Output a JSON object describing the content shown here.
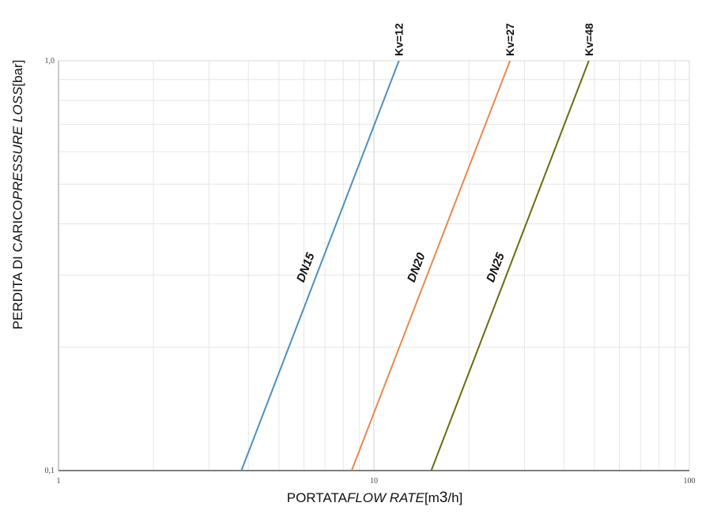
{
  "chart_data": {
    "type": "line",
    "xlabel_parts": [
      "PORTATA",
      "FLOW RATE",
      "[m",
      "3",
      "/h]"
    ],
    "ylabel_parts": [
      "PERDITA DI CARICO",
      "PRESSURE LOSS",
      "[bar]"
    ],
    "x_scale": "log",
    "y_scale": "log",
    "xlim": [
      1,
      100
    ],
    "ylim": [
      0.1,
      1.0
    ],
    "x_ticks": [
      1,
      10,
      100
    ],
    "x_tick_labels": [
      "1",
      "10",
      "100"
    ],
    "y_ticks": [
      0.1,
      1.0
    ],
    "y_tick_labels": [
      "0,1",
      "1,0"
    ],
    "grid": true,
    "series": [
      {
        "name": "DN15",
        "kv_label": "Kv=12",
        "color": "#4e8fbe",
        "x": [
          3.8,
          12
        ],
        "y": [
          0.1,
          1.0
        ]
      },
      {
        "name": "DN20",
        "kv_label": "Kv=27",
        "color": "#e8884f",
        "x": [
          8.5,
          27
        ],
        "y": [
          0.1,
          1.0
        ]
      },
      {
        "name": "DN25",
        "kv_label": "Kv=48",
        "color": "#6b6b10",
        "x": [
          15.2,
          48
        ],
        "y": [
          0.1,
          1.0
        ]
      }
    ]
  }
}
